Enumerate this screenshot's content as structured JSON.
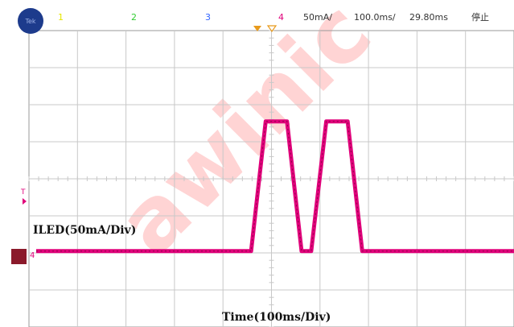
{
  "header": {
    "logo_text": "Tek",
    "channels": [
      {
        "label": "1",
        "color": "#e6e600"
      },
      {
        "label": "2",
        "color": "#33cc33"
      },
      {
        "label": "3",
        "color": "#3366ff"
      },
      {
        "label": "4",
        "color": "#e0007a"
      }
    ],
    "scale": "50mA/",
    "timebase": "100.0ms/",
    "trigger_time": "29.80ms",
    "run_state": "停止"
  },
  "markers": {
    "trigger_level": "T",
    "channel_ground": "4"
  },
  "watermark": "awinic",
  "chart_data": {
    "type": "line",
    "title": "",
    "ylabel": "ILED(50mA/Div)",
    "xlabel": "Time(100ms/Div)",
    "x_divisions": 10,
    "y_divisions": 8,
    "xlim": [
      0,
      10
    ],
    "ylim": [
      -4,
      4
    ],
    "series": [
      {
        "name": "4",
        "color": "#e0007a",
        "x": [
          0.15,
          4.58,
          4.88,
          5.32,
          5.62,
          5.82,
          6.13,
          6.57,
          6.87,
          10.0
        ],
        "y": [
          -1.95,
          -1.95,
          1.55,
          1.55,
          -1.95,
          -1.95,
          1.55,
          1.55,
          -1.95,
          -1.95
        ]
      }
    ]
  },
  "colors": {
    "grid": "#c8c8c8",
    "trace": "#e0007a",
    "logo": "#1d3b8c",
    "watermark": "#ff3b3b"
  }
}
